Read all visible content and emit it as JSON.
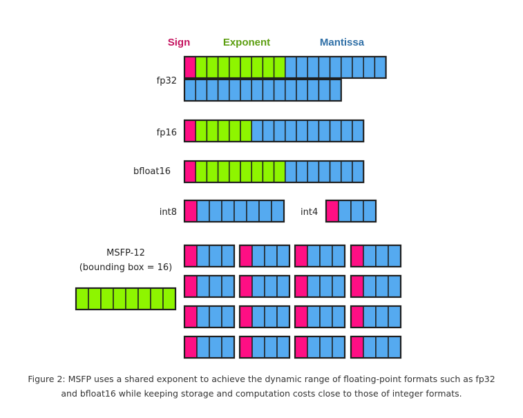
{
  "legend": {
    "sign": "Sign",
    "exponent": "Exponent",
    "mantissa": "Mantissa"
  },
  "colors": {
    "sign": "#ff0f84",
    "exponent": "#8ef500",
    "mantissa": "#55aaf0",
    "sign_text": "#c4125e",
    "exponent_text": "#5c9e10",
    "mantissa_text": "#2f6fa6",
    "outline": "#1f1f1f"
  },
  "formats": {
    "fp32": {
      "label": "fp32",
      "sign_bits": 1,
      "exponent_bits": 8,
      "mantissa_bits": 23
    },
    "fp16": {
      "label": "fp16",
      "sign_bits": 1,
      "exponent_bits": 5,
      "mantissa_bits": 10
    },
    "bfloat16": {
      "label": "bfloat16",
      "sign_bits": 1,
      "exponent_bits": 8,
      "mantissa_bits": 7
    },
    "int8": {
      "label": "int8",
      "sign_bits": 1,
      "mantissa_bits": 7
    },
    "int4": {
      "label": "int4",
      "sign_bits": 1,
      "mantissa_bits": 3
    },
    "msfp12": {
      "label_line1": "MSFP-12",
      "label_line2": "(bounding box = 16)",
      "shared_exponent_bits": 8,
      "block_rows": 4,
      "block_cols": 4,
      "element_sign_bits": 1,
      "element_mantissa_bits": 3
    }
  },
  "caption": {
    "line1": "Figure 2: MSFP uses a shared exponent to achieve the dynamic range of floating-point formats such as fp32",
    "line2": "and bfloat16 while keeping storage and computation costs close to those of integer formats."
  }
}
